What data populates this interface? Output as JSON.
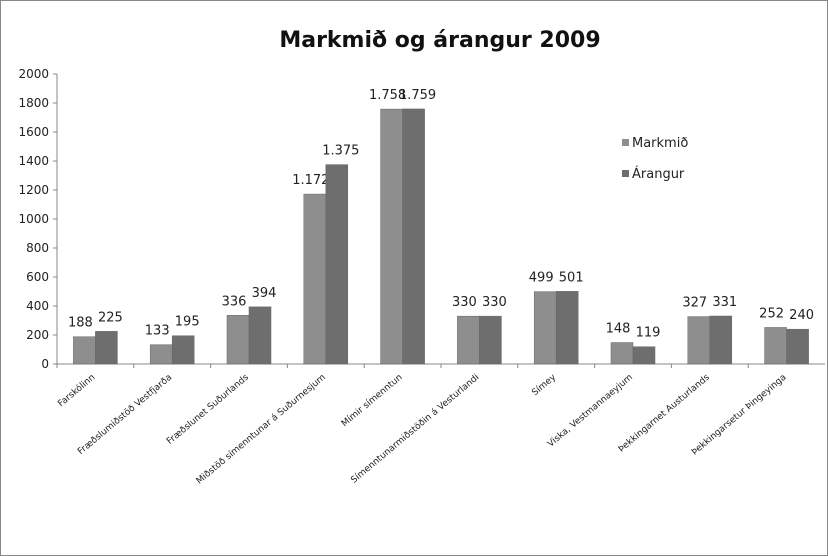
{
  "chart_data": {
    "type": "bar",
    "title": "Markmið og árangur 2009",
    "categories": [
      "Farskólinn",
      "Fræðslumiðstöð Vestfjarða",
      "Fræðslunet Suðurlands",
      "Miðstöð símenntunar á Suðurnesjum",
      "Mímir símenntun",
      "Símenntunarmiðstöðin á Vesturlandi",
      "Símey",
      "Viska, Vestmannaeyjum",
      "Þekkingarnet Austurlands",
      "Þekkingarsetur Þingeyinga"
    ],
    "series": [
      {
        "name": "Markmið",
        "color": "#8e8e8e",
        "values": [
          188,
          133,
          336,
          1172,
          1758,
          330,
          499,
          148,
          327,
          252
        ],
        "value_labels": [
          "188",
          "133",
          "336",
          "1.172",
          "1.758",
          "330",
          "499",
          "148",
          "327",
          "252"
        ]
      },
      {
        "name": "Árangur",
        "color": "#6e6e6e",
        "values": [
          225,
          195,
          394,
          1375,
          1759,
          330,
          501,
          119,
          331,
          240
        ],
        "value_labels": [
          "225",
          "195",
          "394",
          "1.375",
          "1.759",
          "330",
          "501",
          "119",
          "331",
          "240"
        ]
      }
    ],
    "ylim": [
      0,
      2000
    ],
    "yticks": [
      0,
      200,
      400,
      600,
      800,
      1000,
      1200,
      1400,
      1600,
      1800,
      2000
    ],
    "grid": false,
    "legend": "right"
  }
}
